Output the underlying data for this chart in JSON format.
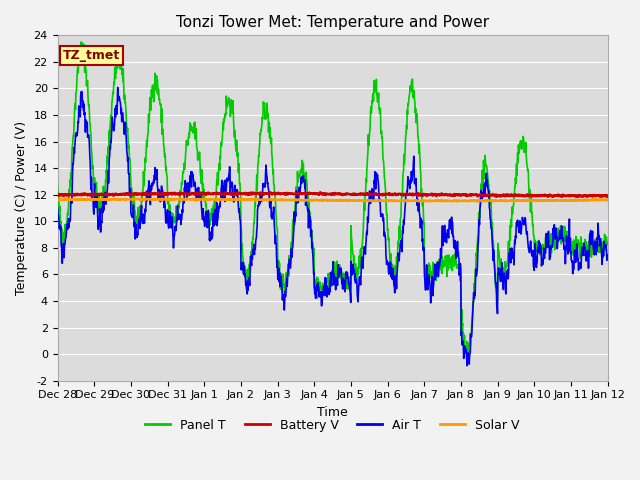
{
  "title": "Tonzi Tower Met: Temperature and Power",
  "xlabel": "Time",
  "ylabel": "Temperature (C) / Power (V)",
  "ylim": [
    -2,
    24
  ],
  "xlim": [
    0,
    360
  ],
  "xtick_positions": [
    0,
    24,
    48,
    72,
    96,
    120,
    144,
    168,
    192,
    216,
    240,
    264,
    288,
    312,
    336,
    360
  ],
  "xtick_labels": [
    "Dec 28",
    "Dec 29",
    "Dec 30",
    "Dec 31",
    "Jan 1",
    "Jan 2",
    "Jan 3",
    "Jan 4",
    "Jan 5",
    "Jan 6",
    "Jan 7",
    "Jan 8",
    "Jan 9",
    "Jan 10",
    "Jan 11",
    "Jan 12"
  ],
  "ytick_positions": [
    -2,
    0,
    2,
    4,
    6,
    8,
    10,
    12,
    14,
    16,
    18,
    20,
    22,
    24
  ],
  "panel_t_color": "#00cc00",
  "battery_v_color": "#cc0000",
  "air_t_color": "#0000ee",
  "solar_v_color": "#ff9900",
  "bg_color": "#dcdcdc",
  "grid_color": "#ffffff",
  "annotation_text": "TZ_tmet",
  "annotation_bg": "#ffff99",
  "annotation_border": "#aa0000",
  "title_fontsize": 11,
  "axis_fontsize": 9,
  "tick_fontsize": 8,
  "legend_fontsize": 9,
  "line_width": 1.2,
  "battery_v_value": 12.0,
  "solar_v_value": 11.6
}
